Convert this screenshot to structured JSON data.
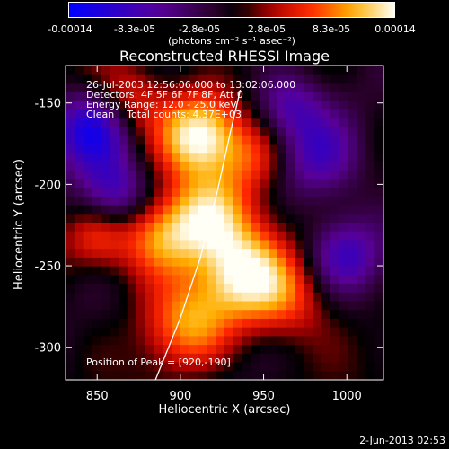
{
  "chart_data": {
    "type": "heatmap",
    "title": "Reconstructed RHESSI Image",
    "xlabel": "Heliocentric X (arcsec)",
    "ylabel": "Heliocentric Y (arcsec)",
    "xlim": [
      831,
      1022
    ],
    "ylim": [
      -320,
      -127
    ],
    "xticks": [
      850,
      900,
      950,
      1000
    ],
    "yticks": [
      -150,
      -200,
      -250,
      -300
    ],
    "colorbar": {
      "range": [
        -0.00014,
        0.00014
      ],
      "ticks": [
        {
          "value": -0.00014,
          "label": "-0.00014"
        },
        {
          "value": -8.3e-05,
          "label": "-8.3e-05"
        },
        {
          "value": -2.8e-05,
          "label": "-2.8e-05"
        },
        {
          "value": 2.8e-05,
          "label": "2.8e-05"
        },
        {
          "value": 8.3e-05,
          "label": "8.3e-05"
        },
        {
          "value": 0.00014,
          "label": "0.00014"
        }
      ],
      "unit": "(photons cm⁻² s⁻¹ asec⁻²)"
    },
    "annotations": [
      "26-Jul-2003 12:56:06.000 to 13:02:06.000",
      "Detectors: 4F 5F 6F 7F 8F, Att 0",
      "Energy Range: 12.0 - 25.0 keV",
      "Clean    Total counts: 4.37E+03"
    ],
    "peak_label": "Position of Peak = [920,-190]",
    "peak": [
      920,
      -190
    ],
    "limb_curve": [
      [
        885,
        -320
      ],
      [
        900,
        -282
      ],
      [
        912,
        -245
      ],
      [
        922,
        -205
      ],
      [
        930,
        -168
      ],
      [
        936,
        -142
      ]
    ]
  },
  "footer": {
    "timestamp": "2-Jun-2013 02:53"
  }
}
